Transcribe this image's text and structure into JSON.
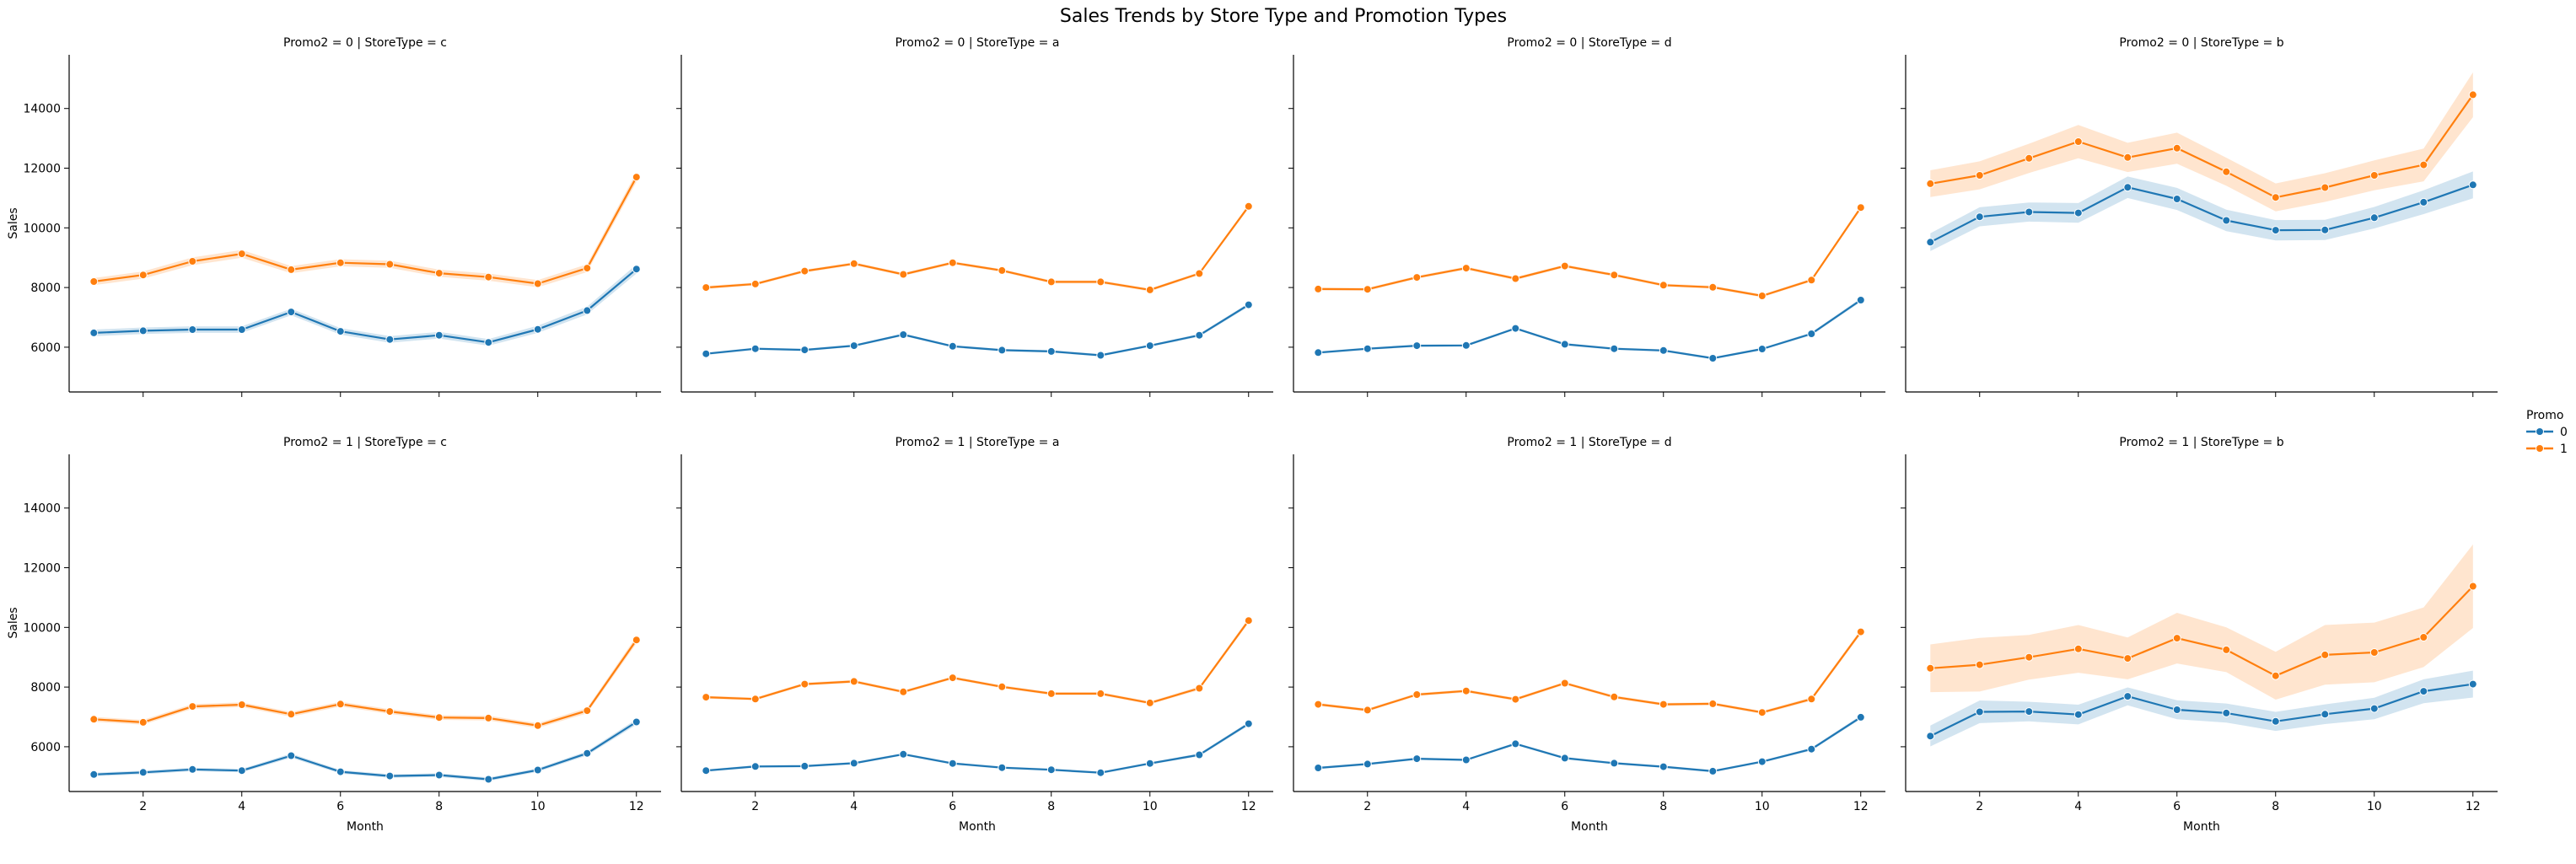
{
  "figure": {
    "title": "Sales Trends by Store Type and Promotion Types"
  },
  "legend": {
    "title": "Promo",
    "placement": "right-center",
    "entries": [
      "0",
      "1"
    ]
  },
  "colors": {
    "promo_0": "#1f77b4",
    "promo_1": "#ff7f0e"
  },
  "chart_data": {
    "type": "line",
    "layout": "facet-grid 2 rows x 4 columns, shared axes",
    "xlabel": "Month",
    "ylabel": "Sales",
    "x": [
      1,
      2,
      3,
      4,
      5,
      6,
      7,
      8,
      9,
      10,
      11,
      12
    ],
    "xticks": [
      2,
      4,
      6,
      8,
      10,
      12
    ],
    "yticks": [
      6000,
      8000,
      10000,
      12000,
      14000
    ],
    "xlim": [
      0.5,
      12.5
    ],
    "ylim": [
      4500,
      15800
    ],
    "markers": true,
    "confidence_bands": true,
    "grid": false,
    "panels": [
      {
        "title": "Promo2 = 0 | StoreType = c",
        "series": [
          {
            "name": "0",
            "values": [
              6480,
              6550,
              6590,
              6590,
              7180,
              6530,
              6260,
              6400,
              6160,
              6600,
              7230,
              8620
            ],
            "ci": [
              110,
              110,
              110,
              110,
              110,
              110,
              110,
              110,
              110,
              120,
              130,
              150
            ]
          },
          {
            "name": "1",
            "values": [
              8200,
              8420,
              8880,
              9130,
              8600,
              8830,
              8780,
              8480,
              8350,
              8130,
              8650,
              11700
            ],
            "ci": [
              120,
              120,
              130,
              130,
              120,
              120,
              120,
              120,
              120,
              120,
              130,
              160
            ]
          }
        ]
      },
      {
        "title": "Promo2 = 0 | StoreType = a",
        "series": [
          {
            "name": "0",
            "values": [
              5780,
              5950,
              5910,
              6050,
              6420,
              6030,
              5900,
              5860,
              5730,
              6050,
              6400,
              7420
            ],
            "ci": [
              40,
              40,
              40,
              40,
              40,
              40,
              40,
              40,
              40,
              40,
              50,
              60
            ]
          },
          {
            "name": "1",
            "values": [
              8000,
              8120,
              8550,
              8800,
              8440,
              8830,
              8570,
              8190,
              8190,
              7920,
              8470,
              10720
            ],
            "ci": [
              50,
              50,
              50,
              50,
              50,
              50,
              50,
              50,
              50,
              50,
              50,
              70
            ]
          }
        ]
      },
      {
        "title": "Promo2 = 0 | StoreType = d",
        "series": [
          {
            "name": "0",
            "values": [
              5820,
              5950,
              6050,
              6060,
              6630,
              6100,
              5950,
              5890,
              5630,
              5940,
              6450,
              7580
            ],
            "ci": [
              40,
              40,
              40,
              40,
              40,
              40,
              40,
              40,
              40,
              40,
              50,
              60
            ]
          },
          {
            "name": "1",
            "values": [
              7950,
              7940,
              8340,
              8650,
              8300,
              8720,
              8420,
              8080,
              8010,
              7720,
              8250,
              10680
            ],
            "ci": [
              50,
              50,
              50,
              50,
              50,
              50,
              50,
              50,
              50,
              50,
              50,
              70
            ]
          }
        ]
      },
      {
        "title": "Promo2 = 0 | StoreType = b",
        "series": [
          {
            "name": "0",
            "values": [
              9520,
              10370,
              10530,
              10500,
              11360,
              10970,
              10250,
              9920,
              9930,
              10340,
              10860,
              11440
            ],
            "ci": [
              300,
              320,
              320,
              330,
              360,
              370,
              360,
              340,
              340,
              360,
              400,
              450
            ]
          },
          {
            "name": "1",
            "values": [
              11480,
              11760,
              12330,
              12890,
              12360,
              12670,
              11880,
              11020,
              11350,
              11760,
              12110,
              14460
            ],
            "ci": [
              450,
              470,
              490,
              560,
              490,
              520,
              470,
              470,
              480,
              500,
              550,
              750
            ]
          }
        ]
      },
      {
        "title": "Promo2 = 1 | StoreType = c",
        "series": [
          {
            "name": "0",
            "values": [
              5070,
              5140,
              5240,
              5200,
              5700,
              5160,
              5020,
              5050,
              4910,
              5220,
              5780,
              6830
            ],
            "ci": [
              60,
              60,
              60,
              60,
              70,
              60,
              60,
              60,
              60,
              60,
              70,
              90
            ]
          },
          {
            "name": "1",
            "values": [
              6920,
              6820,
              7350,
              7410,
              7090,
              7430,
              7180,
              6980,
              6960,
              6710,
              7210,
              9580
            ],
            "ci": [
              80,
              80,
              80,
              80,
              80,
              80,
              80,
              80,
              80,
              80,
              90,
              120
            ]
          }
        ]
      },
      {
        "title": "Promo2 = 1 | StoreType = a",
        "series": [
          {
            "name": "0",
            "values": [
              5200,
              5340,
              5350,
              5450,
              5750,
              5440,
              5300,
              5230,
              5130,
              5440,
              5730,
              6770
            ],
            "ci": [
              40,
              40,
              40,
              40,
              40,
              40,
              40,
              40,
              40,
              40,
              50,
              60
            ]
          },
          {
            "name": "1",
            "values": [
              7660,
              7600,
              8100,
              8190,
              7840,
              8310,
              8010,
              7780,
              7780,
              7470,
              7960,
              10230
            ],
            "ci": [
              50,
              50,
              50,
              50,
              50,
              50,
              50,
              50,
              50,
              50,
              60,
              80
            ]
          }
        ]
      },
      {
        "title": "Promo2 = 1 | StoreType = d",
        "series": [
          {
            "name": "0",
            "values": [
              5290,
              5420,
              5600,
              5560,
              6100,
              5620,
              5450,
              5330,
              5180,
              5500,
              5920,
              6990
            ],
            "ci": [
              40,
              40,
              40,
              40,
              40,
              40,
              40,
              40,
              40,
              40,
              50,
              60
            ]
          },
          {
            "name": "1",
            "values": [
              7420,
              7230,
              7750,
              7870,
              7590,
              8130,
              7670,
              7420,
              7440,
              7150,
              7600,
              9850
            ],
            "ci": [
              50,
              50,
              50,
              50,
              50,
              50,
              50,
              50,
              50,
              50,
              60,
              80
            ]
          }
        ]
      },
      {
        "title": "Promo2 = 1 | StoreType = b",
        "series": [
          {
            "name": "0",
            "values": [
              6360,
              7170,
              7180,
              7080,
              7690,
              7240,
              7130,
              6850,
              7090,
              7280,
              7860,
              8100
            ],
            "ci": [
              350,
              380,
              330,
              330,
              300,
              320,
              320,
              320,
              330,
              360,
              400,
              450
            ]
          },
          {
            "name": "1",
            "values": [
              8630,
              8750,
              9000,
              9280,
              8960,
              9640,
              9250,
              8380,
              9080,
              9160,
              9670,
              11380
            ],
            "ci": [
              800,
              900,
              750,
              800,
              700,
              850,
              750,
              800,
              1000,
              1000,
              1000,
              1400
            ]
          }
        ]
      }
    ]
  }
}
